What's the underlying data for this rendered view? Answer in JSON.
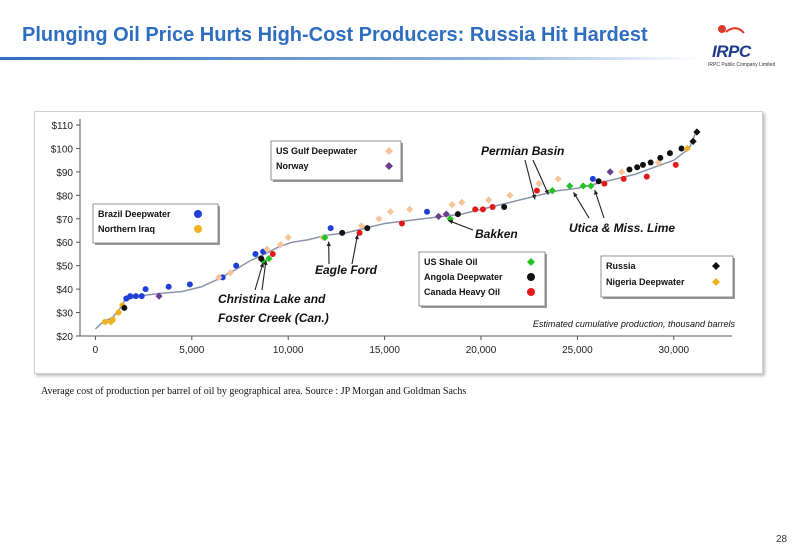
{
  "slide": {
    "title": "Plunging Oil Price Hurts High-Cost Producers: Russia Hit Hardest",
    "logo_text": "IRPC",
    "logo_subtext": "IRPC Public Company Limited",
    "caption": "Average cost of production per barrel of oil by geographical area. Source : JP Morgan and Goldman Sachs",
    "page_number": "28"
  },
  "chart_data": {
    "type": "scatter",
    "title": "",
    "xlabel": "Estimated cumulative production, thousand  barrels",
    "ylabel": "",
    "xlim": [
      -800,
      32500
    ],
    "ylim": [
      20,
      110
    ],
    "x_ticks": [
      0,
      5000,
      10000,
      15000,
      20000,
      25000,
      30000
    ],
    "x_tick_labels": [
      "0",
      "5,000",
      "10,000",
      "15,000",
      "20,000",
      "25,000",
      "30,000"
    ],
    "y_ticks": [
      20,
      30,
      40,
      50,
      60,
      70,
      80,
      90,
      100,
      110
    ],
    "y_tick_labels": [
      "$20",
      "$30",
      "$40",
      "$50",
      "$60",
      "$70",
      "$80",
      "$90",
      "$100",
      "$110"
    ],
    "grid": false,
    "curve": {
      "color": "#8a93a8",
      "x": [
        0,
        400,
        900,
        1300,
        1500,
        2200,
        3200,
        4500,
        5500,
        6300,
        7200,
        8000,
        8800,
        9500,
        10200,
        11000,
        12000,
        13000,
        14000,
        15000,
        16000,
        17000,
        18000,
        19000,
        20000,
        21000,
        22000,
        23000,
        24000,
        25000,
        26000,
        27000,
        28000,
        29000,
        30000,
        30800,
        31200
      ],
      "y": [
        23,
        26,
        28,
        32,
        35,
        37,
        38,
        39,
        41,
        44,
        48,
        52,
        55,
        58,
        60,
        61,
        63,
        64,
        66,
        68,
        69,
        70,
        71,
        72,
        74,
        76,
        78,
        80,
        82,
        83,
        85,
        87,
        89,
        92,
        95,
        100,
        108
      ]
    },
    "series": [
      {
        "name": "Brazil Deepwater",
        "marker": "circle",
        "color": "#1f3fd6",
        "points": [
          [
            1600,
            36
          ],
          [
            1800,
            37
          ],
          [
            2100,
            37
          ],
          [
            2400,
            37
          ],
          [
            2600,
            40
          ],
          [
            3800,
            41
          ],
          [
            4900,
            42
          ],
          [
            6600,
            45
          ],
          [
            7300,
            50
          ],
          [
            8300,
            55
          ],
          [
            8700,
            56
          ],
          [
            12200,
            66
          ],
          [
            17200,
            73
          ],
          [
            25800,
            87
          ]
        ]
      },
      {
        "name": "Northern Iraq",
        "marker": "circle",
        "color": "#f2b21b",
        "points": [
          [
            500,
            26
          ],
          [
            900,
            27
          ],
          [
            1200,
            30
          ],
          [
            1400,
            33
          ]
        ]
      },
      {
        "name": "US Gulf Deepwater",
        "marker": "diamond",
        "color": "#f6c49b",
        "points": [
          [
            6400,
            45
          ],
          [
            7000,
            47
          ],
          [
            8900,
            57
          ],
          [
            9600,
            59
          ],
          [
            10000,
            62
          ],
          [
            11800,
            62
          ],
          [
            13800,
            67
          ],
          [
            14700,
            70
          ],
          [
            15300,
            73
          ],
          [
            16300,
            74
          ],
          [
            18500,
            76
          ],
          [
            19000,
            77
          ],
          [
            20400,
            78
          ],
          [
            21500,
            80
          ],
          [
            23000,
            85
          ],
          [
            24000,
            87
          ],
          [
            27300,
            90
          ],
          [
            29200,
            94
          ]
        ]
      },
      {
        "name": "Norway",
        "marker": "diamond",
        "color": "#6a3d8f",
        "points": [
          [
            3300,
            37
          ],
          [
            17800,
            71
          ],
          [
            18200,
            72
          ],
          [
            26700,
            90
          ]
        ]
      },
      {
        "name": "US Shale Oil",
        "marker": "diamond",
        "color": "#22c422",
        "points": [
          [
            8700,
            52
          ],
          [
            9000,
            53
          ],
          [
            11900,
            62
          ],
          [
            18400,
            70
          ],
          [
            23700,
            82
          ],
          [
            24600,
            84
          ],
          [
            25300,
            84
          ],
          [
            25700,
            84
          ]
        ]
      },
      {
        "name": "Angola Deepwater",
        "marker": "circle",
        "color": "#111111",
        "points": [
          [
            1500,
            32
          ],
          [
            8600,
            53
          ],
          [
            12800,
            64
          ],
          [
            14100,
            66
          ],
          [
            18800,
            72
          ],
          [
            21200,
            75
          ],
          [
            26100,
            86
          ],
          [
            27700,
            91
          ],
          [
            28100,
            92
          ],
          [
            28400,
            93
          ],
          [
            28800,
            94
          ],
          [
            29300,
            96
          ],
          [
            29800,
            98
          ],
          [
            30400,
            100
          ]
        ]
      },
      {
        "name": "Canada Heavy Oil",
        "marker": "circle",
        "color": "#e41a1a",
        "points": [
          [
            9200,
            55
          ],
          [
            13700,
            64
          ],
          [
            15900,
            68
          ],
          [
            19700,
            74
          ],
          [
            20100,
            74
          ],
          [
            20600,
            75
          ],
          [
            22900,
            82
          ],
          [
            26400,
            85
          ],
          [
            27400,
            87
          ],
          [
            28600,
            88
          ],
          [
            30100,
            93
          ]
        ]
      },
      {
        "name": "Russia",
        "marker": "diamond",
        "color": "#111111",
        "points": [
          [
            31000,
            103
          ],
          [
            31200,
            107
          ]
        ]
      },
      {
        "name": "Nigeria Deepwater",
        "marker": "diamond",
        "color": "#f2b21b",
        "points": [
          [
            800,
            26
          ],
          [
            30700,
            100
          ]
        ]
      }
    ],
    "legends": [
      {
        "entries": [
          {
            "label": "Brazil Deepwater",
            "marker": "circle",
            "color": "#1f3fd6"
          },
          {
            "label": "Northern Iraq",
            "marker": "circle",
            "color": "#f2b21b"
          }
        ]
      },
      {
        "entries": [
          {
            "label": "US Gulf Deepwater",
            "marker": "diamond",
            "color": "#f6c49b"
          },
          {
            "label": "Norway",
            "marker": "diamond",
            "color": "#6a3d8f"
          }
        ]
      },
      {
        "entries": [
          {
            "label": "US Shale Oil",
            "marker": "diamond",
            "color": "#22c422"
          },
          {
            "label": "Angola Deepwater",
            "marker": "circle",
            "color": "#111111"
          },
          {
            "label": "Canada Heavy Oil",
            "marker": "circle",
            "color": "#e41a1a"
          }
        ]
      },
      {
        "entries": [
          {
            "label": "Russia",
            "marker": "diamond",
            "color": "#111111"
          },
          {
            "label": "Nigeria Deepwater",
            "marker": "diamond",
            "color": "#f2b21b"
          }
        ]
      }
    ],
    "annotations": [
      {
        "text": "Permian Basin",
        "targets": [
          [
            22800,
            80
          ],
          [
            23500,
            82
          ]
        ]
      },
      {
        "text": "Eagle Ford",
        "targets": [
          [
            12100,
            62
          ],
          [
            13600,
            65
          ]
        ]
      },
      {
        "text": "Christina Lake and",
        "targets": [
          [
            8700,
            53
          ],
          [
            8850,
            54
          ]
        ]
      },
      {
        "text": "Foster  Creek (Can.)",
        "targets": []
      },
      {
        "text": "Bakken",
        "targets": [
          [
            18300,
            71
          ]
        ]
      },
      {
        "text": "Utica & Miss. Lime",
        "targets": [
          [
            24800,
            83
          ],
          [
            25900,
            84
          ]
        ]
      }
    ]
  }
}
